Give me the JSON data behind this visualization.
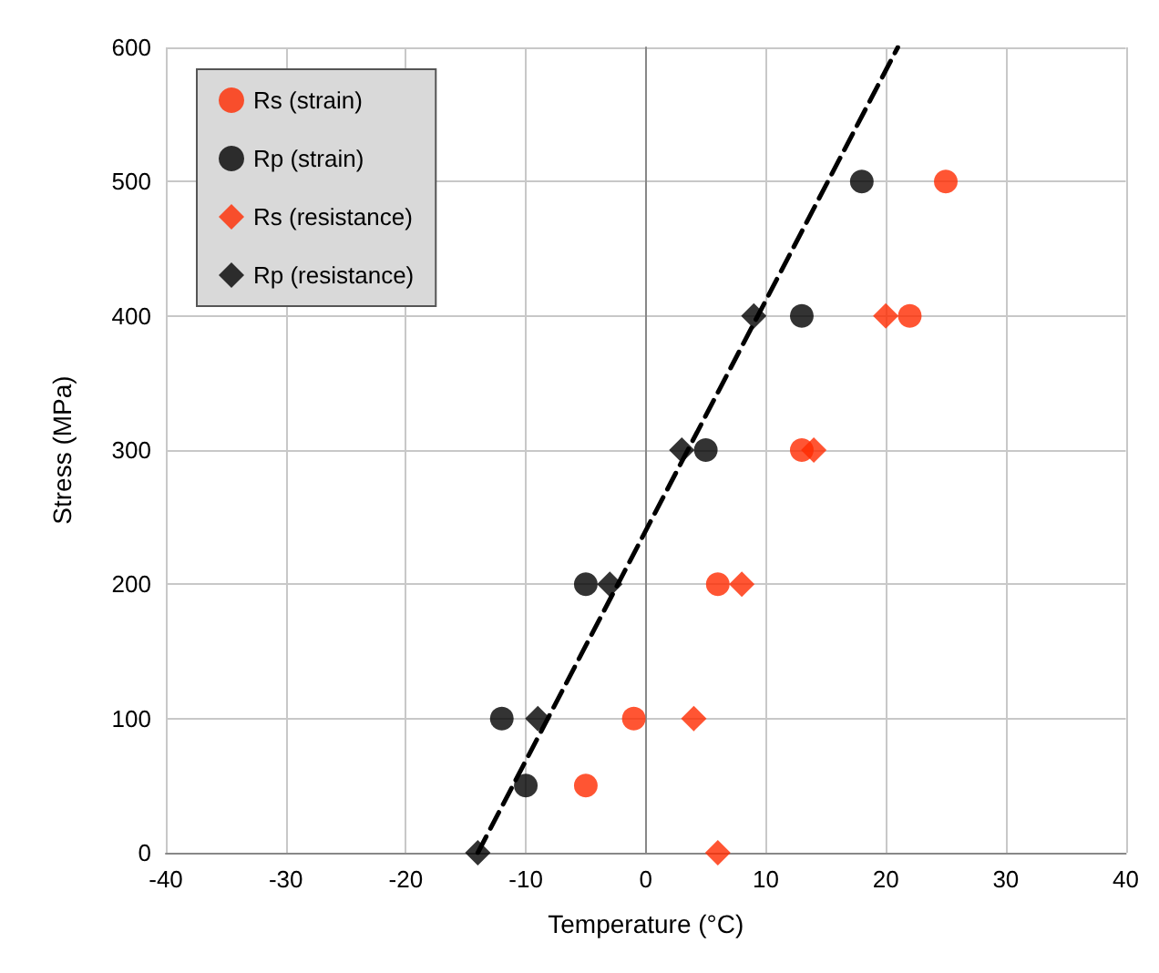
{
  "chart_data": {
    "type": "scatter",
    "xlabel": "Temperature (°C)",
    "ylabel": "Stress (MPa)",
    "xlim": [
      -40,
      40
    ],
    "xticks": [
      -40,
      -30,
      -20,
      -10,
      0,
      10,
      20,
      30,
      40
    ],
    "ylim": [
      0,
      600
    ],
    "yticks": [
      0,
      100,
      200,
      300,
      400,
      500,
      600
    ],
    "grid": true,
    "legend": "top left",
    "series": [
      {
        "name": "Rs (strain)",
        "color": "#ff2a00",
        "marker": "circle",
        "x": [
          25,
          22,
          13,
          6,
          -1,
          -5
        ],
        "values": [
          500,
          400,
          300,
          200,
          100,
          50
        ]
      },
      {
        "name": "Rp (strain)",
        "color": "#000000",
        "marker": "circle",
        "x": [
          18,
          13,
          5,
          -5,
          -12,
          -10
        ],
        "values": [
          500,
          400,
          300,
          200,
          100,
          50
        ]
      },
      {
        "name": "Rs (resistance)",
        "color": "#ff2a00",
        "marker": "diamond",
        "x": [
          6,
          4,
          8,
          14,
          20
        ],
        "values": [
          0,
          100,
          200,
          300,
          400
        ]
      },
      {
        "name": "Rp (resistance)",
        "color": "#000000",
        "marker": "diamond",
        "x": [
          -14,
          -9,
          -3,
          3,
          9
        ],
        "values": [
          0,
          100,
          200,
          300,
          400
        ]
      },
      {
        "type": "line",
        "color": "#000000",
        "line_style": "dashed",
        "marker": "none",
        "x": [
          -14,
          21
        ],
        "values": [
          0,
          600
        ]
      }
    ]
  }
}
